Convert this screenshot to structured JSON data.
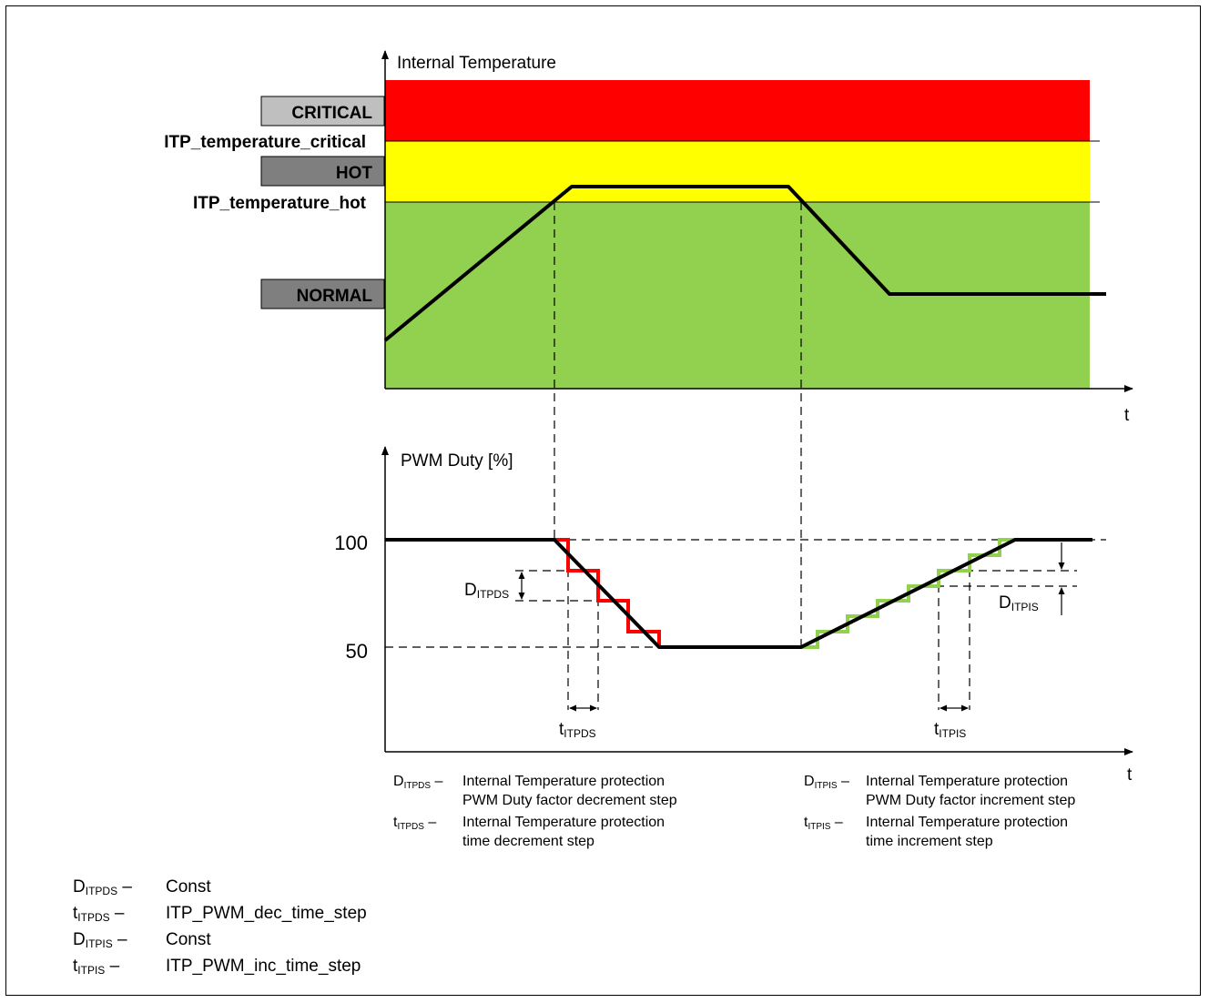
{
  "top_chart": {
    "ylabel": "Internal Temperature",
    "xlabel": "t",
    "zones": {
      "critical": {
        "label": "CRITICAL",
        "color": "#ff0000",
        "text_color": "#ff0000"
      },
      "hot": {
        "label": "HOT",
        "color": "#ffff00",
        "text_color": "#ffff00"
      },
      "normal": {
        "label": "NORMAL",
        "color": "#92d050",
        "text_color": "#92d050"
      }
    },
    "thresholds": {
      "critical": "ITP_temperature_critical",
      "hot": "ITP_temperature_hot"
    }
  },
  "bottom_chart": {
    "ylabel": "PWM Duty [%]",
    "xlabel": "t",
    "ytick_high": "100",
    "ytick_low": "50",
    "dec_step_label": {
      "main": "D",
      "sub": "ITPDS"
    },
    "inc_step_label": {
      "main": "D",
      "sub": "ITPIS"
    },
    "dec_time_label": {
      "main": "t",
      "sub": "ITPDS"
    },
    "inc_time_label": {
      "main": "t",
      "sub": "ITPIS"
    },
    "dec_color": "#ff0000",
    "inc_color": "#92d050"
  },
  "legend_inline": [
    {
      "sym": "D",
      "sub": "ITPDS",
      "dash": "–",
      "line1": "Internal Temperature protection",
      "line2": "PWM Duty factor decrement step"
    },
    {
      "sym": "t",
      "sub": "ITPDS",
      "dash": "–",
      "line1": "Internal Temperature protection",
      "line2": "time decrement step"
    },
    {
      "sym": "D",
      "sub": "ITPIS",
      "dash": "–",
      "line1": "Internal Temperature protection",
      "line2": "PWM Duty factor increment step"
    },
    {
      "sym": "t",
      "sub": "ITPIS",
      "dash": "–",
      "line1": "Internal Temperature protection",
      "line2": "time increment step"
    }
  ],
  "definitions": [
    {
      "sym": "D",
      "sub": "ITPDS",
      "dash": "–",
      "value": "Const"
    },
    {
      "sym": "t",
      "sub": "ITPDS",
      "dash": "–",
      "value": "ITP_PWM_dec_time_step"
    },
    {
      "sym": "D",
      "sub": "ITPIS",
      "dash": "–",
      "value": "Const"
    },
    {
      "sym": "t",
      "sub": "ITPIS",
      "dash": "–",
      "value": "ITP_PWM_inc_time_step"
    }
  ]
}
